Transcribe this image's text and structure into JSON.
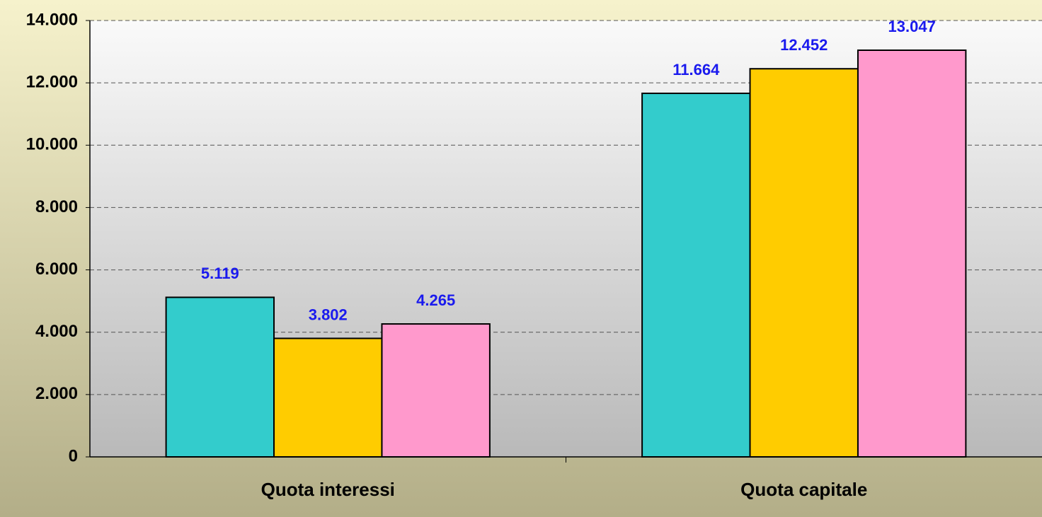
{
  "chart_data": {
    "type": "bar",
    "categories": [
      "Quota interessi",
      "Quota capitale"
    ],
    "series": [
      {
        "color": "#33cccc",
        "values": [
          5119,
          11664
        ],
        "value_labels": [
          "5.119",
          "11.664"
        ]
      },
      {
        "color": "#ffcc00",
        "values": [
          3802,
          12452
        ],
        "value_labels": [
          "3.802",
          "12.452"
        ]
      },
      {
        "color": "#ff99cc",
        "values": [
          4265,
          13047
        ],
        "value_labels": [
          "4.265",
          "13.047"
        ]
      }
    ],
    "ylim": [
      0,
      14000
    ],
    "yticks": [
      0,
      {
        "value": 2000,
        "label": "2.000"
      },
      {
        "value": 4000,
        "label": "4.000"
      },
      {
        "value": 6000,
        "label": "6.000"
      },
      {
        "value": 8000,
        "label": "8.000"
      },
      {
        "value": 10000,
        "label": "10.000"
      },
      {
        "value": 12000,
        "label": "12.000"
      },
      {
        "value": 14000,
        "label": "14.000"
      }
    ],
    "grid": true
  }
}
